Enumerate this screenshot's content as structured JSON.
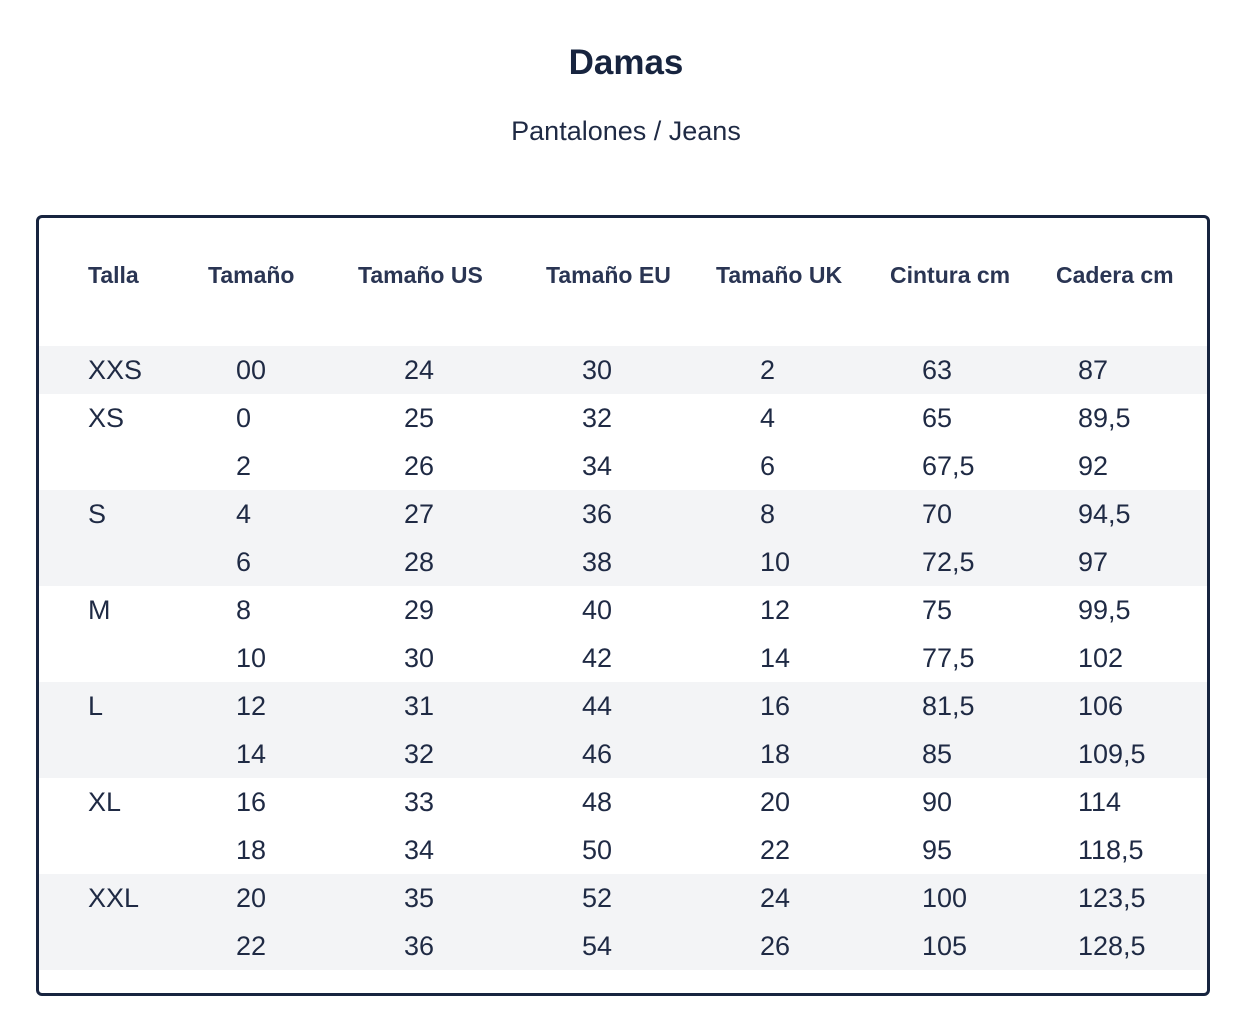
{
  "title": "Damas",
  "subtitle": "Pantalones / Jeans",
  "table": {
    "headers": [
      "Talla",
      "Tamaño",
      "Tamaño US",
      "Tamaño EU",
      "Tamaño UK",
      "Cintura cm",
      "Cadera cm"
    ],
    "groups": [
      {
        "talla": "XXS",
        "rows": [
          [
            "00",
            "24",
            "30",
            "2",
            "63",
            "87"
          ]
        ]
      },
      {
        "talla": "XS",
        "rows": [
          [
            "0",
            "25",
            "32",
            "4",
            "65",
            "89,5"
          ],
          [
            "2",
            "26",
            "34",
            "6",
            "67,5",
            "92"
          ]
        ]
      },
      {
        "talla": "S",
        "rows": [
          [
            "4",
            "27",
            "36",
            "8",
            "70",
            "94,5"
          ],
          [
            "6",
            "28",
            "38",
            "10",
            "72,5",
            "97"
          ]
        ]
      },
      {
        "talla": "M",
        "rows": [
          [
            "8",
            "29",
            "40",
            "12",
            "75",
            "99,5"
          ],
          [
            "10",
            "30",
            "42",
            "14",
            "77,5",
            "102"
          ]
        ]
      },
      {
        "talla": "L",
        "rows": [
          [
            "12",
            "31",
            "44",
            "16",
            "81,5",
            "106"
          ],
          [
            "14",
            "32",
            "46",
            "18",
            "85",
            "109,5"
          ]
        ]
      },
      {
        "talla": "XL",
        "rows": [
          [
            "16",
            "33",
            "48",
            "20",
            "90",
            "114"
          ],
          [
            "18",
            "34",
            "50",
            "22",
            "95",
            "118,5"
          ]
        ]
      },
      {
        "talla": "XXL",
        "rows": [
          [
            "20",
            "35",
            "52",
            "24",
            "100",
            "123,5"
          ],
          [
            "22",
            "36",
            "54",
            "26",
            "105",
            "128,5"
          ]
        ]
      }
    ]
  },
  "colors": {
    "text": "#1f2a44",
    "border": "#17243f",
    "shaded_row": "#f3f4f6"
  }
}
